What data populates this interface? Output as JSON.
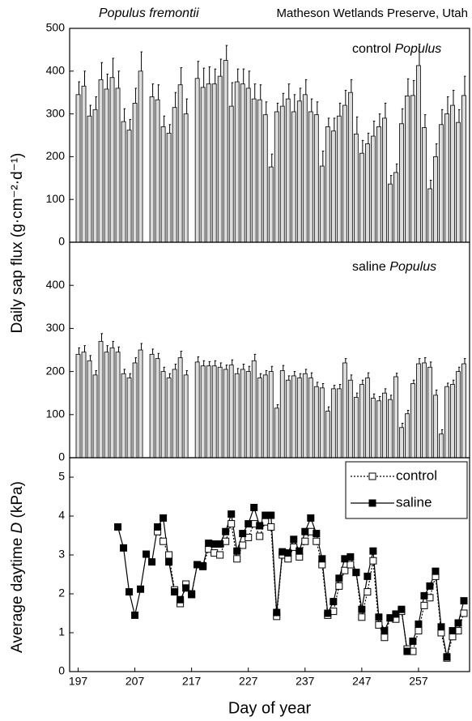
{
  "chart_data": [
    {
      "type": "bar",
      "title": "Populus fremontii",
      "subtitle": "Matheson Wetlands Preserve, Utah",
      "annotation": [
        "control",
        "Populus"
      ],
      "x": [
        197,
        198,
        199,
        200,
        201,
        202,
        203,
        204,
        205,
        206,
        207,
        208,
        210,
        211,
        212,
        213,
        214,
        215,
        216,
        218,
        219,
        220,
        221,
        222,
        223,
        224,
        225,
        226,
        227,
        228,
        229,
        230,
        231,
        232,
        233,
        234,
        235,
        236,
        237,
        238,
        239,
        240,
        241,
        242,
        243,
        244,
        245,
        246,
        247,
        248,
        249,
        250,
        251,
        252,
        253,
        254,
        255,
        256,
        257,
        258,
        259,
        260,
        261,
        262,
        263,
        264,
        265
      ],
      "values": [
        345,
        365,
        295,
        310,
        380,
        358,
        385,
        360,
        282,
        262,
        325,
        400,
        340,
        333,
        270,
        255,
        315,
        368,
        300,
        383,
        362,
        370,
        370,
        388,
        425,
        318,
        375,
        370,
        360,
        335,
        333,
        298,
        176,
        305,
        318,
        335,
        305,
        330,
        345,
        305,
        298,
        178,
        270,
        260,
        295,
        320,
        350,
        253,
        208,
        230,
        248,
        270,
        290,
        136,
        163,
        277,
        342,
        343,
        413,
        268,
        125,
        200,
        275,
        300,
        320,
        280,
        343
      ],
      "errors": [
        30,
        35,
        25,
        30,
        40,
        35,
        45,
        40,
        30,
        25,
        35,
        45,
        30,
        35,
        25,
        20,
        35,
        40,
        35,
        40,
        45,
        40,
        35,
        40,
        35,
        55,
        30,
        35,
        40,
        35,
        35,
        30,
        30,
        20,
        30,
        35,
        40,
        30,
        35,
        30,
        30,
        35,
        20,
        30,
        30,
        35,
        30,
        40,
        30,
        25,
        35,
        30,
        35,
        20,
        20,
        35,
        40,
        35,
        50,
        30,
        20,
        30,
        35,
        40,
        35,
        30,
        45
      ],
      "color": "#dcdcdc",
      "xlim": [
        195.5,
        266
      ],
      "ylim": [
        0,
        500
      ],
      "yticks": [
        0,
        100,
        200,
        300,
        400,
        500
      ]
    },
    {
      "type": "bar",
      "ylabel": "Daily sap flux (g·cm⁻²·d⁻¹)",
      "annotation": [
        "saline",
        "Populus"
      ],
      "x": [
        197,
        198,
        199,
        200,
        201,
        202,
        203,
        204,
        205,
        206,
        207,
        208,
        210,
        211,
        212,
        213,
        214,
        215,
        216,
        218,
        219,
        220,
        221,
        222,
        223,
        224,
        225,
        226,
        227,
        228,
        229,
        230,
        231,
        232,
        233,
        234,
        235,
        236,
        237,
        238,
        239,
        240,
        241,
        242,
        243,
        244,
        245,
        246,
        247,
        248,
        249,
        250,
        251,
        252,
        253,
        254,
        255,
        256,
        257,
        258,
        259,
        260,
        261,
        262,
        263,
        264,
        265
      ],
      "values": [
        240,
        245,
        225,
        192,
        270,
        245,
        255,
        245,
        195,
        185,
        220,
        250,
        240,
        230,
        200,
        185,
        205,
        232,
        192,
        222,
        213,
        213,
        213,
        210,
        205,
        215,
        195,
        205,
        200,
        225,
        185,
        192,
        200,
        115,
        202,
        180,
        190,
        185,
        195,
        185,
        165,
        162,
        108,
        160,
        160,
        220,
        180,
        140,
        170,
        185,
        138,
        132,
        150,
        135,
        188,
        70,
        102,
        172,
        218,
        220,
        210,
        145,
        55,
        165,
        170,
        200,
        218
      ],
      "errors": [
        15,
        15,
        12,
        10,
        18,
        15,
        15,
        12,
        10,
        10,
        12,
        15,
        12,
        12,
        10,
        10,
        12,
        15,
        10,
        12,
        12,
        10,
        12,
        10,
        10,
        12,
        12,
        12,
        12,
        15,
        10,
        10,
        12,
        8,
        12,
        10,
        10,
        10,
        10,
        12,
        10,
        10,
        10,
        8,
        10,
        10,
        12,
        10,
        10,
        12,
        10,
        10,
        10,
        10,
        8,
        10,
        8,
        8,
        12,
        12,
        12,
        12,
        10,
        8,
        10,
        10,
        12
      ],
      "color": "#dcdcdc",
      "xlim": [
        195.5,
        266
      ],
      "ylim": [
        0,
        500
      ],
      "yticks": [
        0,
        100,
        200,
        300,
        400
      ]
    },
    {
      "type": "line",
      "ylabel": [
        "Average daytime",
        "D",
        "(kPa)"
      ],
      "xlabel": "Day of year",
      "x": [
        204,
        205,
        206,
        207,
        208,
        209,
        210,
        211,
        212,
        213,
        214,
        215,
        216,
        217,
        218,
        219,
        220,
        221,
        222,
        223,
        224,
        225,
        226,
        227,
        228,
        229,
        230,
        231,
        232,
        233,
        234,
        235,
        236,
        237,
        238,
        239,
        240,
        241,
        242,
        243,
        244,
        245,
        246,
        247,
        248,
        249,
        250,
        251,
        252,
        253,
        254,
        255,
        256,
        257,
        258,
        259,
        260,
        261,
        262,
        263,
        264,
        265
      ],
      "series": [
        {
          "name": "control",
          "color": "#000000",
          "marker_fill": "#ffffff",
          "dashed": true,
          "values": [
            null,
            null,
            null,
            null,
            null,
            null,
            null,
            3.6,
            3.35,
            3.0,
            2.1,
            1.75,
            2.25,
            1.98,
            2.75,
            2.7,
            3.15,
            3.05,
            3.0,
            3.35,
            3.8,
            2.9,
            3.25,
            3.45,
            3.8,
            3.48,
            3.85,
            3.72,
            1.42,
            3.0,
            2.9,
            3.2,
            2.95,
            3.35,
            3.6,
            3.35,
            2.75,
            1.45,
            1.55,
            2.2,
            2.6,
            2.75,
            2.55,
            1.4,
            2.05,
            2.85,
            1.2,
            0.88,
            1.38,
            1.35,
            1.55,
            0.58,
            0.52,
            1.05,
            1.7,
            1.9,
            2.45,
            1.0,
            0.35,
            0.9,
            1.05,
            1.5
          ]
        },
        {
          "name": "saline",
          "color": "#000000",
          "marker_fill": "#000000",
          "dashed": false,
          "values": [
            3.72,
            3.18,
            2.05,
            1.45,
            2.12,
            3.02,
            2.82,
            3.72,
            3.95,
            2.82,
            2.05,
            1.85,
            2.15,
            2.0,
            2.75,
            2.72,
            3.3,
            3.28,
            3.28,
            3.6,
            4.05,
            3.1,
            3.55,
            3.8,
            4.22,
            3.75,
            4.02,
            4.02,
            1.52,
            3.08,
            3.05,
            3.4,
            3.1,
            3.6,
            3.95,
            3.55,
            2.9,
            1.5,
            1.8,
            2.4,
            2.9,
            2.95,
            2.55,
            1.6,
            2.45,
            3.1,
            1.4,
            1.05,
            1.38,
            1.48,
            1.6,
            0.52,
            0.78,
            1.22,
            1.95,
            2.2,
            2.58,
            1.15,
            0.38,
            1.05,
            1.25,
            1.82
          ]
        }
      ],
      "xlim": [
        195.5,
        266
      ],
      "xticks": [
        197,
        207,
        217,
        227,
        237,
        247,
        257
      ],
      "ylim": [
        0,
        5.5
      ],
      "yticks": [
        0,
        1,
        2,
        3,
        4,
        5
      ],
      "legend": "upper right"
    }
  ]
}
